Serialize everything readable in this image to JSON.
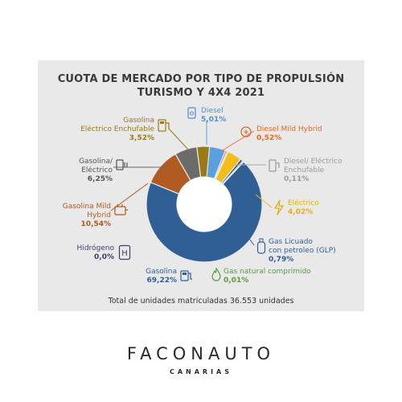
{
  "colors": {
    "gasolina": "#2f5f95",
    "gasolina_mild": "#b15a22",
    "gasolina_electrico": "#6b6b6b",
    "gasolina_enchufable": "#9a7a14",
    "hidrogeno": "#4a4a7a",
    "diesel": "#5a9fe0",
    "diesel_mild": "#e9762e",
    "diesel_electrico": "#a8a8a8",
    "electrico": "#f3be1a",
    "glp": "#355c95",
    "gnc": "#6aa84f"
  },
  "chart_data": {
    "type": "pie",
    "style": "donut",
    "title": "CUOTA DE MERCADO POR TIPO DE PROPULSIÓN",
    "subtitle": "TURISMO Y 4X4  2021",
    "slices": [
      {
        "label": "Diesel",
        "value": 5.01,
        "display": "5,01%",
        "color_key": "diesel"
      },
      {
        "label": "Diesel Mild Hybrid",
        "value": 0.52,
        "display": "0,52%",
        "color_key": "diesel_mild"
      },
      {
        "label": "Diesel/ Eléctrico Enchufable",
        "value": 0.11,
        "display": "0,11%",
        "color_key": "diesel_electrico"
      },
      {
        "label": "Eléctrico",
        "value": 4.02,
        "display": "4,02%",
        "color_key": "electrico"
      },
      {
        "label": "Gas Licuado con petroleo (GLP)",
        "value": 0.79,
        "display": "0,79%",
        "color_key": "glp"
      },
      {
        "label": "Gas natural comprimido",
        "value": 0.01,
        "display": "0,01%",
        "color_key": "gnc"
      },
      {
        "label": "Gasolina",
        "value": 69.22,
        "display": "69,22%",
        "color_key": "gasolina"
      },
      {
        "label": "Hidrógeno",
        "value": 0.0,
        "display": "0,0%",
        "color_key": "hidrogeno"
      },
      {
        "label": "Gasolina Mild Hybrid",
        "value": 10.54,
        "display": "10,54%",
        "color_key": "gasolina_mild"
      },
      {
        "label": "Gasolina/ Eléctrico",
        "value": 6.25,
        "display": "6,25%",
        "color_key": "gasolina_electrico"
      },
      {
        "label": "Gasolina Eléctrico Enchufable",
        "value": 3.52,
        "display": "3,52%",
        "color_key": "gasolina_enchufable"
      }
    ],
    "labels": {
      "diesel": {
        "name": "Diesel",
        "pct": "5,01%"
      },
      "diesel_mild": {
        "name": "Diesel Mild Hybrid",
        "pct": "0,52%"
      },
      "diesel_electrico": {
        "name1": "Diesel/ Eléctrico",
        "name2": "Enchufable",
        "pct": "0,11%"
      },
      "electrico": {
        "name": "Eléctrico",
        "pct": "4,02%"
      },
      "glp": {
        "name1": "Gas Licuado",
        "name2": "con petroleo (GLP)",
        "pct": "0,79%"
      },
      "gnc": {
        "name": "Gas natural comprimido",
        "pct": "0,01%"
      },
      "gasolina": {
        "name": "Gasolina",
        "pct": "69,22%"
      },
      "hidrogeno": {
        "name": "Hidrógeno",
        "pct": "0,0%"
      },
      "gasolina_mild": {
        "name1": "Gasolina Mild",
        "name2": "Hybrid",
        "pct": "10,54%"
      },
      "gasolina_electrico": {
        "name1": "Gasolina/",
        "name2": "Eléctrico",
        "pct": "6,25%"
      },
      "gasolina_enchufable": {
        "name1": "Gasolina",
        "name2": "Eléctrico Enchufable",
        "pct": "3,52%"
      }
    },
    "footer": "Total de unidades matriculadas 36.553 unidades"
  },
  "brand": {
    "name": "FACONAUTO",
    "sub": "CANARIAS"
  }
}
